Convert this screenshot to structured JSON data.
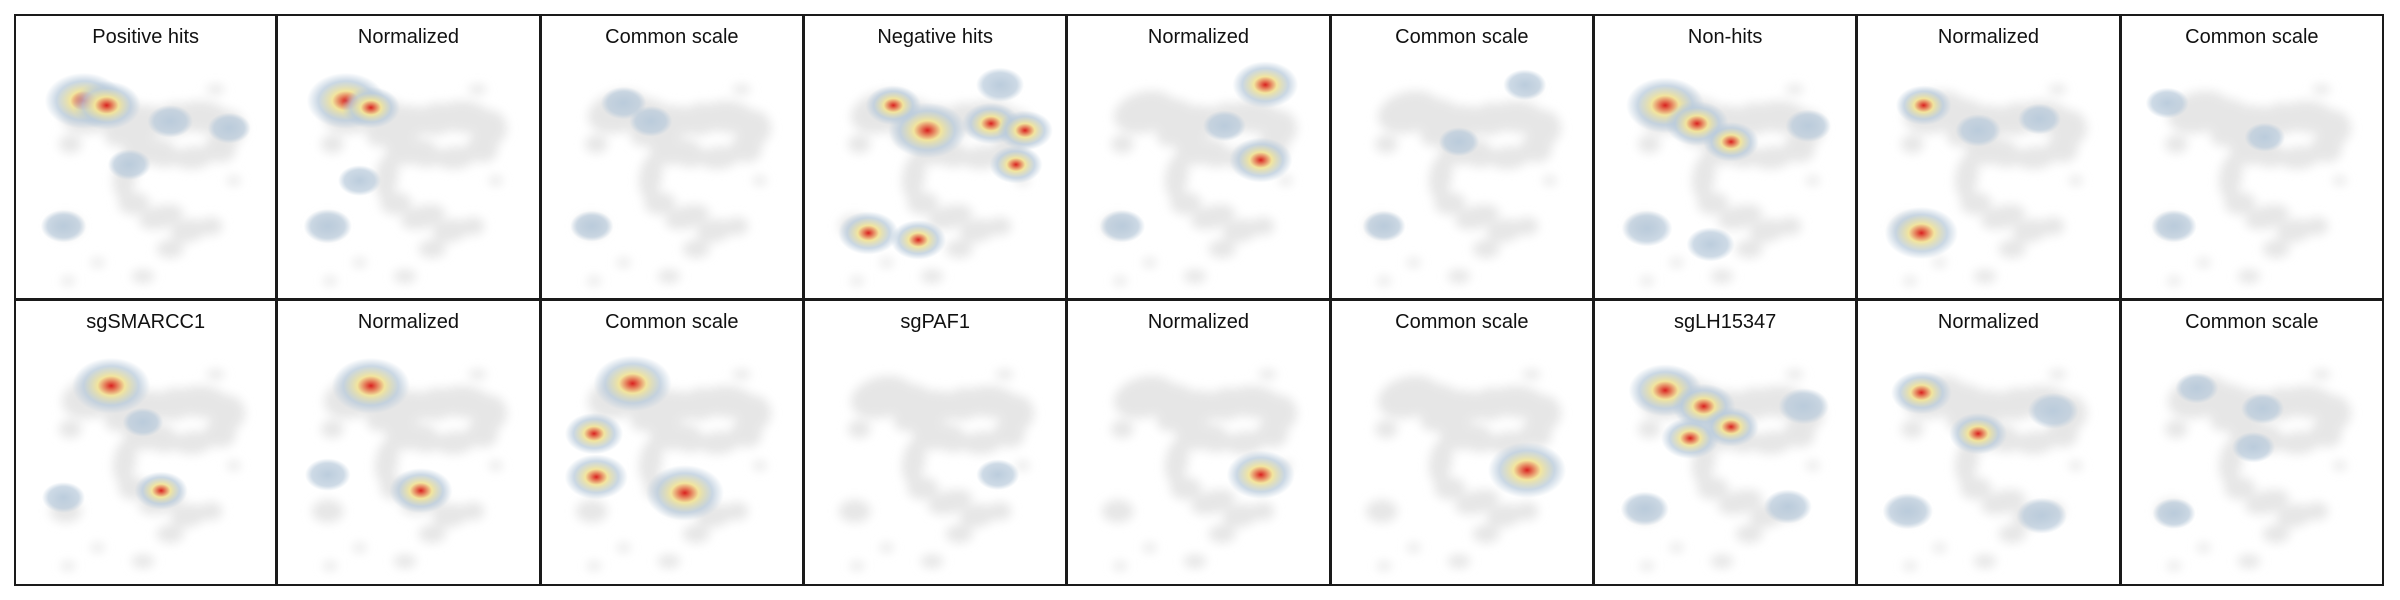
{
  "chart_data": {
    "type": "heatmap",
    "colors": {
      "background_density": "#e6e6e6",
      "low": "#b8cadb",
      "mid": "#f2e49a",
      "high": "#d9211f"
    },
    "panels": [
      {
        "title": "Positive hits",
        "hotspots": [
          {
            "x": 0.22,
            "y": 0.17,
            "v": 1.0
          },
          {
            "x": 0.32,
            "y": 0.19,
            "v": 0.8
          },
          {
            "x": 0.6,
            "y": 0.26,
            "v": 0.35
          },
          {
            "x": 0.86,
            "y": 0.29,
            "v": 0.3
          },
          {
            "x": 0.42,
            "y": 0.45,
            "v": 0.3
          },
          {
            "x": 0.13,
            "y": 0.72,
            "v": 0.35
          }
        ]
      },
      {
        "title": "Normalized",
        "hotspots": [
          {
            "x": 0.22,
            "y": 0.17,
            "v": 1.0
          },
          {
            "x": 0.33,
            "y": 0.2,
            "v": 0.6
          },
          {
            "x": 0.28,
            "y": 0.52,
            "v": 0.3
          },
          {
            "x": 0.14,
            "y": 0.72,
            "v": 0.4
          }
        ]
      },
      {
        "title": "Common scale",
        "hotspots": [
          {
            "x": 0.28,
            "y": 0.18,
            "v": 0.35
          },
          {
            "x": 0.4,
            "y": 0.26,
            "v": 0.3
          },
          {
            "x": 0.14,
            "y": 0.72,
            "v": 0.3
          }
        ]
      },
      {
        "title": "Negative hits",
        "hotspots": [
          {
            "x": 0.46,
            "y": 0.3,
            "v": 1.0
          },
          {
            "x": 0.31,
            "y": 0.19,
            "v": 0.55
          },
          {
            "x": 0.74,
            "y": 0.27,
            "v": 0.6
          },
          {
            "x": 0.89,
            "y": 0.3,
            "v": 0.55
          },
          {
            "x": 0.85,
            "y": 0.45,
            "v": 0.5
          },
          {
            "x": 0.2,
            "y": 0.75,
            "v": 0.65
          },
          {
            "x": 0.42,
            "y": 0.78,
            "v": 0.55
          },
          {
            "x": 0.78,
            "y": 0.1,
            "v": 0.4
          }
        ]
      },
      {
        "title": "Normalized",
        "hotspots": [
          {
            "x": 0.79,
            "y": 0.1,
            "v": 0.75
          },
          {
            "x": 0.77,
            "y": 0.43,
            "v": 0.7
          },
          {
            "x": 0.61,
            "y": 0.28,
            "v": 0.3
          },
          {
            "x": 0.16,
            "y": 0.72,
            "v": 0.35
          }
        ]
      },
      {
        "title": "Common scale",
        "hotspots": [
          {
            "x": 0.77,
            "y": 0.1,
            "v": 0.3
          },
          {
            "x": 0.48,
            "y": 0.35,
            "v": 0.25
          },
          {
            "x": 0.15,
            "y": 0.72,
            "v": 0.3
          }
        ]
      },
      {
        "title": "Non-hits",
        "hotspots": [
          {
            "x": 0.23,
            "y": 0.19,
            "v": 1.0
          },
          {
            "x": 0.37,
            "y": 0.27,
            "v": 0.7
          },
          {
            "x": 0.52,
            "y": 0.35,
            "v": 0.55
          },
          {
            "x": 0.86,
            "y": 0.28,
            "v": 0.35
          },
          {
            "x": 0.15,
            "y": 0.73,
            "v": 0.45
          },
          {
            "x": 0.43,
            "y": 0.8,
            "v": 0.4
          }
        ]
      },
      {
        "title": "Normalized",
        "hotspots": [
          {
            "x": 0.2,
            "y": 0.75,
            "v": 0.9
          },
          {
            "x": 0.21,
            "y": 0.19,
            "v": 0.55
          },
          {
            "x": 0.45,
            "y": 0.3,
            "v": 0.35
          },
          {
            "x": 0.72,
            "y": 0.25,
            "v": 0.3
          }
        ]
      },
      {
        "title": "Common scale",
        "hotspots": [
          {
            "x": 0.12,
            "y": 0.18,
            "v": 0.3
          },
          {
            "x": 0.15,
            "y": 0.72,
            "v": 0.35
          },
          {
            "x": 0.55,
            "y": 0.33,
            "v": 0.25
          }
        ]
      },
      {
        "title": "sgSMARCC1",
        "hotspots": [
          {
            "x": 0.34,
            "y": 0.17,
            "v": 1.0
          },
          {
            "x": 0.48,
            "y": 0.33,
            "v": 0.25
          },
          {
            "x": 0.56,
            "y": 0.63,
            "v": 0.5
          },
          {
            "x": 0.13,
            "y": 0.66,
            "v": 0.3
          }
        ]
      },
      {
        "title": "Normalized",
        "hotspots": [
          {
            "x": 0.33,
            "y": 0.17,
            "v": 1.0
          },
          {
            "x": 0.55,
            "y": 0.63,
            "v": 0.7
          },
          {
            "x": 0.14,
            "y": 0.56,
            "v": 0.35
          }
        ]
      },
      {
        "title": "Common scale",
        "hotspots": [
          {
            "x": 0.32,
            "y": 0.16,
            "v": 1.0
          },
          {
            "x": 0.55,
            "y": 0.64,
            "v": 1.0
          },
          {
            "x": 0.16,
            "y": 0.57,
            "v": 0.7
          },
          {
            "x": 0.15,
            "y": 0.38,
            "v": 0.6
          }
        ]
      },
      {
        "title": "sgPAF1",
        "hotspots": [
          {
            "x": 0.77,
            "y": 0.56,
            "v": 0.3
          }
        ]
      },
      {
        "title": "Normalized",
        "hotspots": [
          {
            "x": 0.77,
            "y": 0.56,
            "v": 0.8
          }
        ]
      },
      {
        "title": "Common scale",
        "hotspots": [
          {
            "x": 0.78,
            "y": 0.54,
            "v": 1.0
          }
        ]
      },
      {
        "title": "sgLH15347",
        "hotspots": [
          {
            "x": 0.23,
            "y": 0.19,
            "v": 0.9
          },
          {
            "x": 0.4,
            "y": 0.26,
            "v": 0.7
          },
          {
            "x": 0.34,
            "y": 0.4,
            "v": 0.6
          },
          {
            "x": 0.52,
            "y": 0.35,
            "v": 0.55
          },
          {
            "x": 0.84,
            "y": 0.26,
            "v": 0.45
          },
          {
            "x": 0.14,
            "y": 0.71,
            "v": 0.4
          },
          {
            "x": 0.77,
            "y": 0.7,
            "v": 0.4
          }
        ]
      },
      {
        "title": "Normalized",
        "hotspots": [
          {
            "x": 0.2,
            "y": 0.2,
            "v": 0.65
          },
          {
            "x": 0.45,
            "y": 0.38,
            "v": 0.6
          },
          {
            "x": 0.78,
            "y": 0.28,
            "v": 0.45
          },
          {
            "x": 0.14,
            "y": 0.72,
            "v": 0.45
          },
          {
            "x": 0.73,
            "y": 0.74,
            "v": 0.45
          }
        ]
      },
      {
        "title": "Common scale",
        "hotspots": [
          {
            "x": 0.25,
            "y": 0.18,
            "v": 0.3
          },
          {
            "x": 0.54,
            "y": 0.27,
            "v": 0.3
          },
          {
            "x": 0.5,
            "y": 0.44,
            "v": 0.3
          },
          {
            "x": 0.15,
            "y": 0.73,
            "v": 0.3
          }
        ]
      }
    ]
  }
}
